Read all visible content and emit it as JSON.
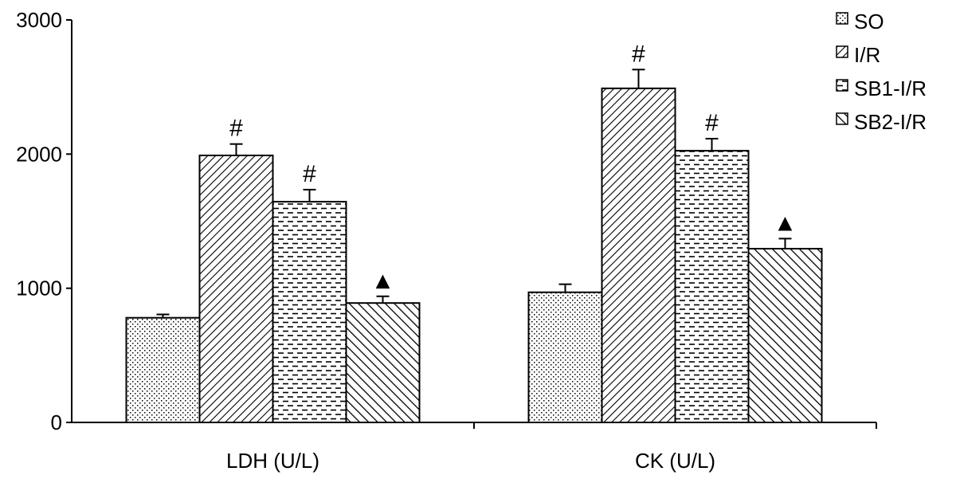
{
  "chart_data": {
    "type": "bar",
    "title": "",
    "xlabel": "",
    "ylabel": "",
    "ylim": [
      0,
      3000
    ],
    "yticks": [
      0,
      1000,
      2000,
      3000
    ],
    "grid": false,
    "legend_position": "top-right",
    "categories": [
      "LDH (U/L)",
      "CK (U/L)"
    ],
    "series": [
      {
        "name": "SO",
        "pattern": "dots",
        "values": [
          780,
          970
        ],
        "errors": [
          25,
          60
        ]
      },
      {
        "name": "I/R",
        "pattern": "diagonal-down",
        "values": [
          1990,
          2490
        ],
        "errors": [
          85,
          140
        ]
      },
      {
        "name": "SB1-I/R",
        "pattern": "dashes",
        "values": [
          1645,
          2025
        ],
        "errors": [
          90,
          90
        ]
      },
      {
        "name": "SB2-I/R",
        "pattern": "diagonal-up",
        "values": [
          890,
          1295
        ],
        "errors": [
          50,
          75
        ]
      }
    ],
    "annotations": [
      {
        "category_index": 0,
        "series_index": 1,
        "text": "#"
      },
      {
        "category_index": 0,
        "series_index": 2,
        "text": "#"
      },
      {
        "category_index": 0,
        "series_index": 3,
        "text": "▲"
      },
      {
        "category_index": 1,
        "series_index": 1,
        "text": "#"
      },
      {
        "category_index": 1,
        "series_index": 2,
        "text": "#"
      },
      {
        "category_index": 1,
        "series_index": 3,
        "text": "▲"
      }
    ]
  }
}
